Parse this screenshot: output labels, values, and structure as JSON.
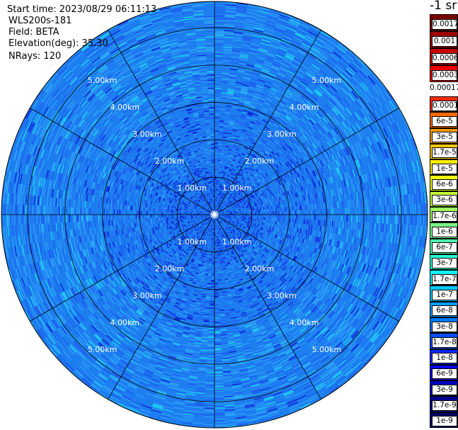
{
  "header": {
    "start_time": "Start time: 2023/08/29 06:11:13",
    "instrument": "WLS200s-181",
    "field": "Field: BETA",
    "elevation": "Elevation(deg): 35.30",
    "nrays": "NRays: 120"
  },
  "colorbar": {
    "title": "-1 sr",
    "upper_labels": [
      "0.0017",
      "0.001",
      "0.0006",
      "0.0003"
    ],
    "gap_label": "0.00017",
    "lower_labels": [
      "0.0001",
      "6e-5",
      "3e-5",
      "1.7e-5",
      "1e-5",
      "6e-6",
      "3e-6",
      "1.7e-6",
      "1e-6",
      "6e-7",
      "3e-7",
      "1.7e-7",
      "1e-7",
      "6e-8",
      "3e-8",
      "1.7e-8",
      "1e-8",
      "6e-9",
      "3e-9",
      "1.7e-9",
      "1e-9"
    ],
    "upper_colors": [
      "#7a0000",
      "#9e0000",
      "#c80000",
      "#e80000"
    ],
    "lower_colors": [
      "#ff2a00",
      "#ff6a00",
      "#ff9a00",
      "#ffc800",
      "#ffee00",
      "#f0ff10",
      "#c8ff38",
      "#a0ff60",
      "#78ff88",
      "#50ffb0",
      "#28ffd8",
      "#10f0ff",
      "#00c8ff",
      "#00a0ff",
      "#0078ff",
      "#0050ff",
      "#0028ff",
      "#0000f0",
      "#0000c0",
      "#000090",
      "#000068"
    ]
  },
  "chart_data": {
    "type": "heatmap",
    "projection": "polar PPI",
    "field": "BETA",
    "range_rings_km": [
      1.0,
      2.0,
      3.0,
      4.0,
      5.0
    ],
    "ring_labels": [
      "1.00km",
      "2.00km",
      "3.00km",
      "4.00km",
      "5.00km"
    ],
    "max_range_km": 5.7,
    "azimuth_spokes_deg": [
      0,
      30,
      60,
      90,
      120,
      150,
      180,
      210,
      240,
      270,
      300,
      330
    ],
    "nrays": 120,
    "dominant_range": "about 1e-8 to 1e-7 sr-1 (blue shades), denser dark-blue (about 1e-9 to 3e-9) near the center",
    "colors": {
      "background_blue": "#1d7ef0",
      "mid_blue": "#1e62ef",
      "light_blue": "#2a9cf5",
      "dark_blue": "#0f2fd8",
      "cyan": "#1ec8f0"
    }
  }
}
